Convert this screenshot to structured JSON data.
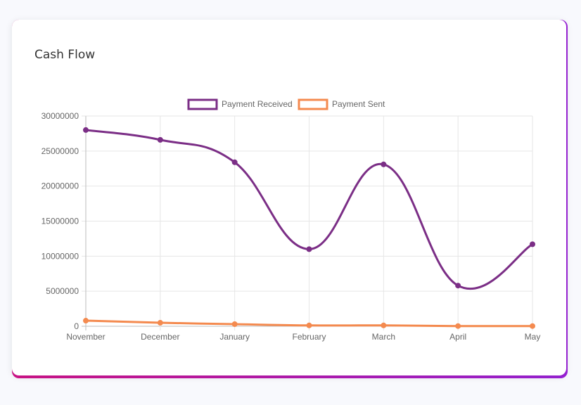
{
  "card": {
    "title": "Cash Flow"
  },
  "colors": {
    "received": "#7b2e86",
    "sent": "#f48a4f",
    "grid": "#e6e6e6",
    "tick_text": "#666666"
  },
  "chart_data": {
    "type": "line",
    "categories": [
      "November",
      "December",
      "January",
      "February",
      "March",
      "April",
      "May"
    ],
    "series": [
      {
        "name": "Payment Received",
        "values": [
          28000000,
          26600000,
          23400000,
          11000000,
          23100000,
          5800000,
          11700000
        ]
      },
      {
        "name": "Payment Sent",
        "values": [
          800000,
          500000,
          300000,
          120000,
          120000,
          30000,
          30000
        ]
      }
    ],
    "ylim": [
      0,
      30000000
    ],
    "yticks": [
      "30000000",
      "25000000",
      "20000000",
      "15000000",
      "10000000",
      "5000000",
      "0"
    ],
    "grid": true,
    "legend": "top-center"
  }
}
